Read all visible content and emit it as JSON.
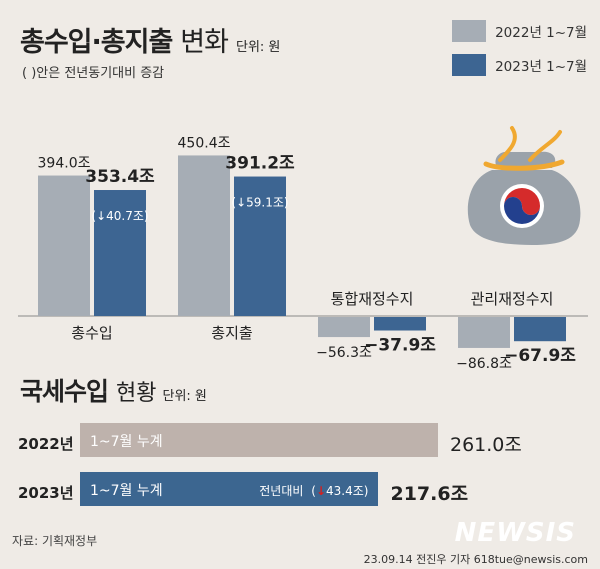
{
  "header": {
    "title_bold": "총수입·총지출",
    "title_regular": "변화",
    "unit": "단위: 원",
    "note": "( )안은 전년동기대비 증감"
  },
  "legend": [
    {
      "label": "2022년 1~7월",
      "color": "#a6adb5"
    },
    {
      "label": "2023년 1~7월",
      "color": "#3d6592"
    }
  ],
  "colors": {
    "bg": "#efebe6",
    "bar_2022": "#a6adb5",
    "bar_2023": "#3d6592",
    "down_arrow": "#3d86c8",
    "tax_2022": "#beb2ac",
    "tax_2023": "#3c6690",
    "red_arrow": "#d32020"
  },
  "chart_data": [
    {
      "type": "bar",
      "categories": [
        "총수입",
        "총지출",
        "통합재정수지",
        "관리재정수지"
      ],
      "series": [
        {
          "name": "2022년 1~7월",
          "values": [
            394.0,
            450.4,
            -56.3,
            -86.8
          ]
        },
        {
          "name": "2023년 1~7월",
          "values": [
            353.4,
            391.2,
            -37.9,
            -67.9
          ]
        }
      ],
      "value_labels": {
        "2022": [
          "394.0조",
          "450.4조",
          "−56.3조",
          "−86.8조"
        ],
        "2023": [
          "353.4조",
          "391.2조",
          "−37.9조",
          "−67.9조"
        ]
      },
      "changes": [
        "40.7조",
        "59.1조"
      ],
      "change_direction": "down",
      "ylim": [
        -90,
        460
      ]
    },
    {
      "type": "bar",
      "orientation": "horizontal",
      "categories": [
        "2022년",
        "2023년"
      ],
      "values": [
        261.0,
        217.6
      ],
      "value_labels": [
        "261.0조",
        "217.6조"
      ],
      "bar_labels": [
        "1~7월 누계",
        "1~7월 누계"
      ],
      "change_label": "전년대비",
      "change_value": "43.4조",
      "change_direction": "down"
    }
  ],
  "section2": {
    "title_bold": "국세수입",
    "title_regular": "현황",
    "unit": "단위: 원"
  },
  "footer": {
    "source": "자료: 기획재정부",
    "credit": "23.09.14 전진우 기자 618tue@newsis.com",
    "logo": "NEWSIS"
  }
}
